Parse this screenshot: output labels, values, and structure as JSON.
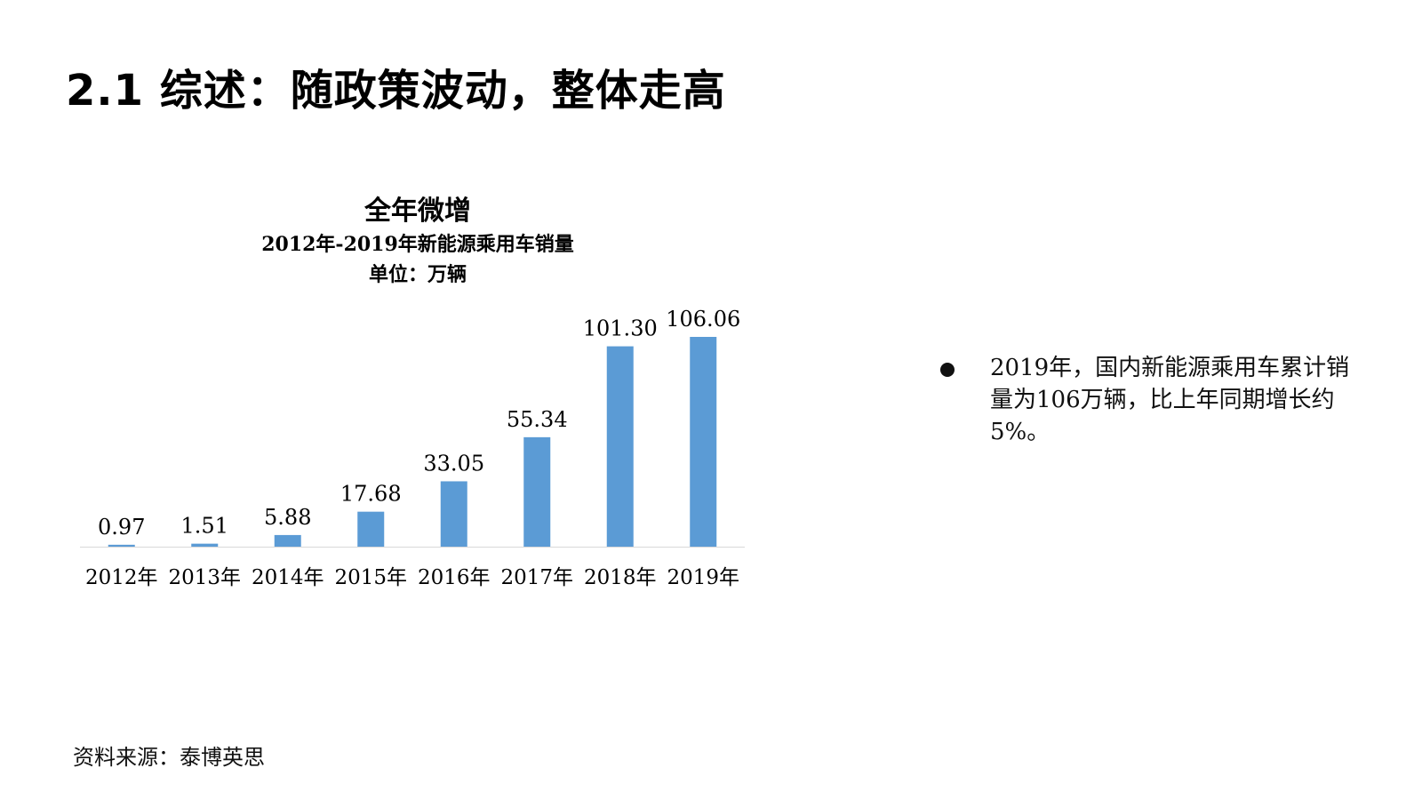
{
  "page": {
    "title": "2.1 综述：随政策波动，整体走高",
    "source": "资料来源：泰博英思"
  },
  "summary": {
    "bullet": "2019年，国内新能源乘用车累计销量为106万辆，比上年同期增长约5%。"
  },
  "chart_data": {
    "type": "bar",
    "title": "全年微增",
    "subtitle": "2012年-2019年新能源乘用车销量",
    "unit": "单位：万辆",
    "categories": [
      "2012年",
      "2013年",
      "2014年",
      "2015年",
      "2016年",
      "2017年",
      "2018年",
      "2019年"
    ],
    "values": [
      0.97,
      1.51,
      5.88,
      17.68,
      33.05,
      55.34,
      101.3,
      106.06
    ],
    "value_labels": [
      "0.97",
      "1.51",
      "5.88",
      "17.68",
      "33.05",
      "55.34",
      "101.30",
      "106.06"
    ],
    "ylim": [
      0,
      106.06
    ],
    "bar_color": "#5b9bd5",
    "grid": false,
    "legend": "none"
  }
}
